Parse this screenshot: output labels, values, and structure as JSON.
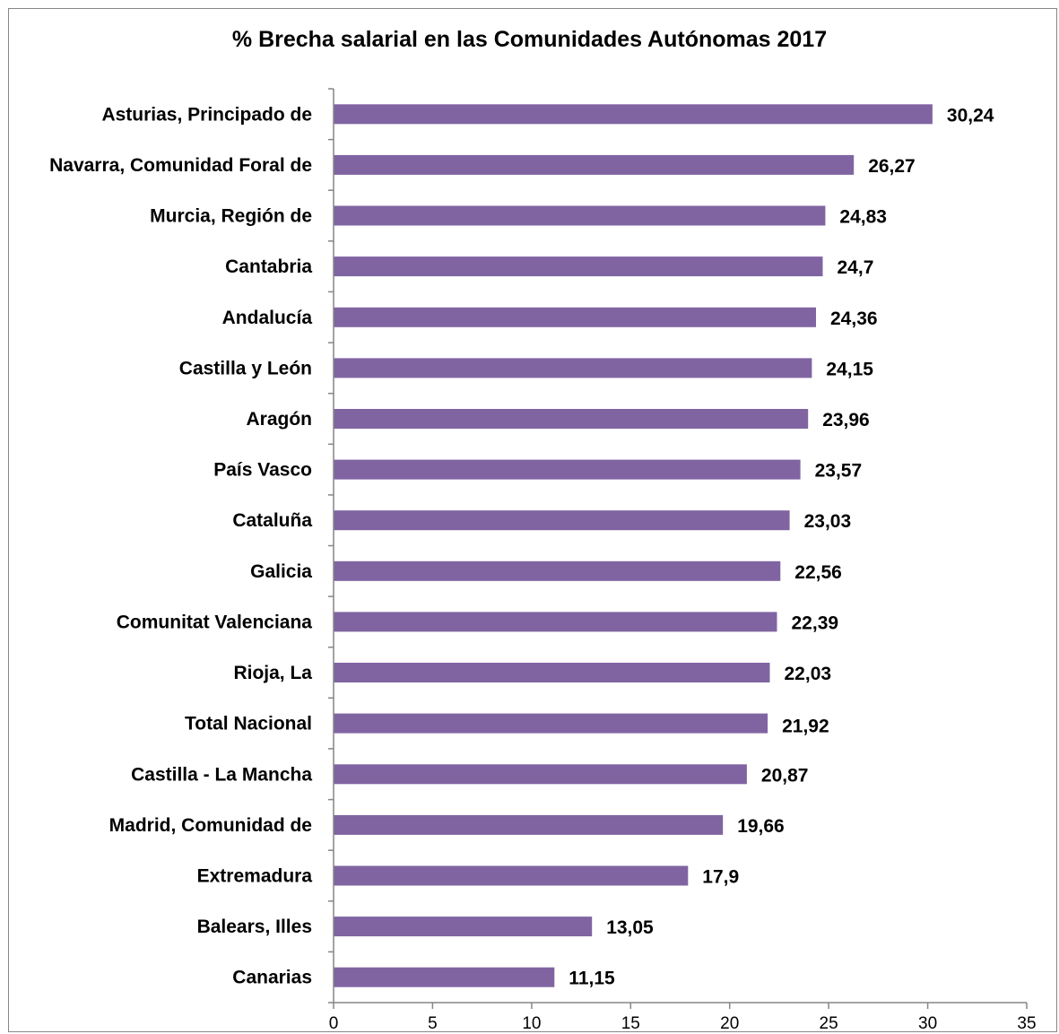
{
  "chart_data": {
    "type": "bar",
    "orientation": "horizontal",
    "title": "% Brecha salarial en las Comunidades Autónomas 2017",
    "categories": [
      "Asturias, Principado de",
      "Navarra, Comunidad Foral de",
      "Murcia, Región de",
      "Cantabria",
      "Andalucía",
      "Castilla y León",
      "Aragón",
      "País Vasco",
      "Cataluña",
      "Galicia",
      "Comunitat Valenciana",
      "Rioja, La",
      "Total Nacional",
      "Castilla - La Mancha",
      "Madrid, Comunidad de",
      "Extremadura",
      "Balears, Illes",
      "Canarias"
    ],
    "values": [
      30.24,
      26.27,
      24.83,
      24.7,
      24.36,
      24.15,
      23.96,
      23.57,
      23.03,
      22.56,
      22.39,
      22.03,
      21.92,
      20.87,
      19.66,
      17.9,
      13.05,
      11.15
    ],
    "value_labels": [
      "30,24",
      "26,27",
      "24,83",
      "24,7",
      "24,36",
      "24,15",
      "23,96",
      "23,57",
      "23,03",
      "22,56",
      "22,39",
      "22,03",
      "21,92",
      "20,87",
      "19,66",
      "17,9",
      "13,05",
      "11,15"
    ],
    "highlight_category": "Total Nacional",
    "xlim": [
      0,
      35
    ],
    "xticks": [
      0,
      5,
      10,
      15,
      20,
      25,
      30,
      35
    ],
    "grid": false,
    "legend": "none",
    "colors": {
      "bar": "#8064A2",
      "axis": "#868686",
      "frame": "#868686"
    }
  }
}
